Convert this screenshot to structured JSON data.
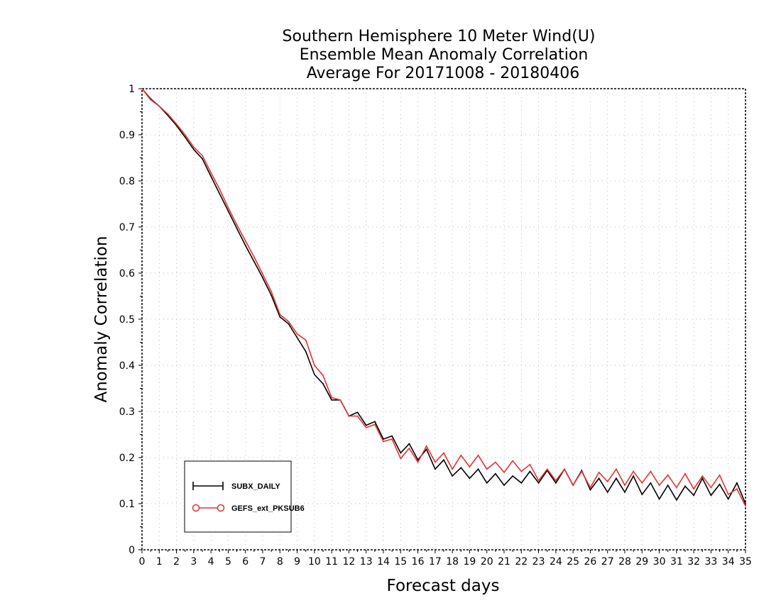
{
  "chart_data": {
    "type": "line",
    "title": "Southern Hemisphere 10 Meter Wind(U)",
    "subtitle": "Ensemble Mean Anomaly Correlation",
    "subtitle2": "Average For 20171008 - 20180406",
    "xlabel": "Forecast days",
    "ylabel": "Anomaly Correlation",
    "xlim": [
      0,
      35
    ],
    "ylim": [
      0,
      1
    ],
    "xticks": [
      "0",
      "1",
      "2",
      "3",
      "4",
      "5",
      "6",
      "7",
      "8",
      "9",
      "10",
      "11",
      "12",
      "13",
      "14",
      "15",
      "16",
      "17",
      "18",
      "19",
      "20",
      "21",
      "22",
      "23",
      "24",
      "25",
      "26",
      "27",
      "28",
      "29",
      "30",
      "31",
      "32",
      "33",
      "34",
      "35"
    ],
    "yticks": [
      "0",
      "0.1",
      "0.2",
      "0.3",
      "0.4",
      "0.5",
      "0.6",
      "0.7",
      "0.8",
      "0.9",
      "1"
    ],
    "grid": true,
    "legend_position": "bottom-left",
    "x": [
      0,
      0.5,
      1,
      1.5,
      2,
      2.5,
      3,
      3.5,
      4,
      4.5,
      5,
      5.5,
      6,
      6.5,
      7,
      7.5,
      8,
      8.5,
      9,
      9.5,
      10,
      10.5,
      11,
      11.5,
      12,
      12.5,
      13,
      13.5,
      14,
      14.5,
      15,
      15.5,
      16,
      16.5,
      17,
      17.5,
      18,
      18.5,
      19,
      19.5,
      20,
      20.5,
      21,
      21.5,
      22,
      22.5,
      23,
      23.5,
      24,
      24.5,
      25,
      25.5,
      26,
      26.5,
      27,
      27.5,
      28,
      28.5,
      29,
      29.5,
      30,
      30.5,
      31,
      31.5,
      32,
      32.5,
      33,
      33.5,
      34,
      34.5,
      35
    ],
    "series": [
      {
        "name": "SUBX_DAILY",
        "color": "#000000",
        "marker": "plus",
        "values": [
          1.0,
          0.978,
          0.962,
          0.942,
          0.92,
          0.895,
          0.868,
          0.848,
          0.81,
          0.772,
          0.735,
          0.697,
          0.66,
          0.625,
          0.59,
          0.552,
          0.505,
          0.49,
          0.46,
          0.43,
          0.38,
          0.36,
          0.325,
          0.325,
          0.29,
          0.298,
          0.27,
          0.278,
          0.24,
          0.247,
          0.21,
          0.23,
          0.195,
          0.218,
          0.175,
          0.195,
          0.16,
          0.178,
          0.155,
          0.175,
          0.145,
          0.165,
          0.14,
          0.16,
          0.145,
          0.17,
          0.145,
          0.172,
          0.145,
          0.175,
          0.14,
          0.172,
          0.13,
          0.155,
          0.125,
          0.155,
          0.125,
          0.16,
          0.12,
          0.145,
          0.11,
          0.14,
          0.108,
          0.138,
          0.118,
          0.155,
          0.118,
          0.142,
          0.11,
          0.145,
          0.1
        ]
      },
      {
        "name": "GEFS_ext_PKSUB6",
        "color": "#e8302e",
        "marker": "circle",
        "values": [
          1.0,
          0.976,
          0.962,
          0.945,
          0.923,
          0.9,
          0.873,
          0.855,
          0.818,
          0.782,
          0.742,
          0.705,
          0.67,
          0.635,
          0.598,
          0.56,
          0.51,
          0.495,
          0.468,
          0.455,
          0.4,
          0.378,
          0.33,
          0.325,
          0.29,
          0.29,
          0.265,
          0.272,
          0.235,
          0.24,
          0.198,
          0.22,
          0.19,
          0.225,
          0.19,
          0.21,
          0.175,
          0.205,
          0.18,
          0.205,
          0.175,
          0.19,
          0.168,
          0.193,
          0.17,
          0.185,
          0.15,
          0.175,
          0.15,
          0.175,
          0.14,
          0.17,
          0.135,
          0.168,
          0.148,
          0.175,
          0.14,
          0.17,
          0.145,
          0.17,
          0.14,
          0.162,
          0.135,
          0.165,
          0.132,
          0.16,
          0.135,
          0.162,
          0.12,
          0.132,
          0.095
        ]
      }
    ]
  }
}
